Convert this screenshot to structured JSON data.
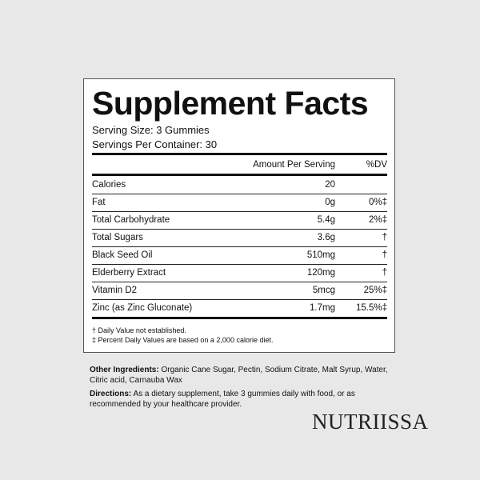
{
  "title": "Supplement Facts",
  "serving_size": "Serving Size: 3 Gummies",
  "servings_per_container": "Servings Per Container: 30",
  "header": {
    "amount": "Amount Per Serving",
    "dv": "%DV"
  },
  "rows": [
    {
      "name": "Calories",
      "amount": "20",
      "dv": ""
    },
    {
      "name": "Fat",
      "amount": "0g",
      "dv": "0%‡"
    },
    {
      "name": "Total Carbohydrate",
      "amount": "5.4g",
      "dv": "2%‡"
    },
    {
      "name": "Total Sugars",
      "amount": "3.6g",
      "dv": "†"
    },
    {
      "name": "Black Seed Oil",
      "amount": "510mg",
      "dv": "†"
    },
    {
      "name": "Elderberry Extract",
      "amount": "120mg",
      "dv": "†"
    },
    {
      "name": "Vitamin D2",
      "amount": "5mcg",
      "dv": "25%‡"
    },
    {
      "name": "Zinc (as Zinc Gluconate)",
      "amount": "1.7mg",
      "dv": "15.5%‡"
    }
  ],
  "footnotes": [
    "† Daily Value not established.",
    "‡ Percent Daily Values are based on a 2,000 calorie diet."
  ],
  "other_ingredients": {
    "label": "Other Ingredients:",
    "text": " Organic Cane Sugar, Pectin, Sodium Citrate, Malt Syrup, Water, Citric acid, Carnauba Wax"
  },
  "directions": {
    "label": "Directions:",
    "text": " As a dietary supplement, take 3 gummies daily with food, or as recommended by your healthcare provider."
  },
  "brand": "NUTRIISSA"
}
